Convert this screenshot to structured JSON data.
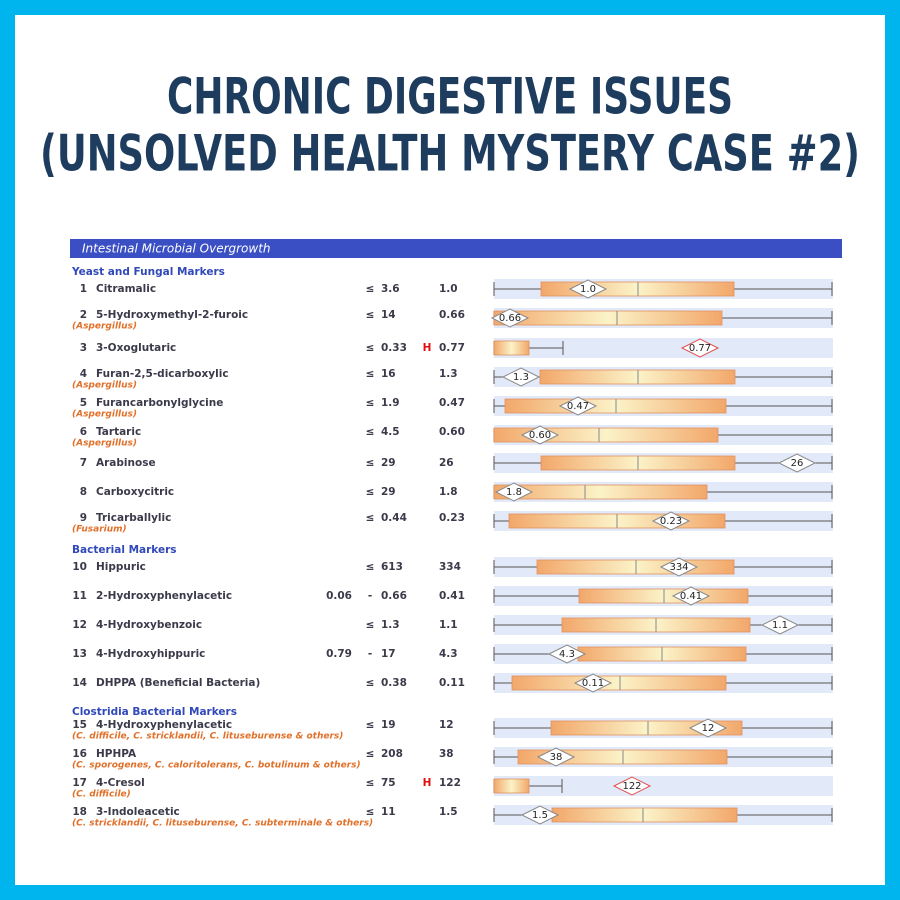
{
  "title": {
    "line1": "CHRONIC DIGESTIVE ISSUES",
    "line2": "(UNSOLVED HEALTH MYSTERY CASE #2)"
  },
  "report": {
    "section": "Intestinal Microbial Overgrowth",
    "groups": [
      {
        "name": "Yeast and Fungal Markers",
        "rows": [
          {
            "number": "1",
            "name": "Citramalic",
            "symbol": "≤",
            "high": "3.6",
            "value": "1.0"
          },
          {
            "number": "2",
            "name": "5-Hydroxymethyl-2-furoic",
            "organism": "(Aspergillus)",
            "symbol": "≤",
            "high": "14",
            "value": "0.66"
          },
          {
            "number": "3",
            "name": "3-Oxoglutaric",
            "symbol": "≤",
            "high": "0.33",
            "flag": "H",
            "value": "0.77"
          },
          {
            "number": "4",
            "name": "Furan-2,5-dicarboxylic",
            "organism": "(Aspergillus)",
            "symbol": "≤",
            "high": "16",
            "value": "1.3"
          },
          {
            "number": "5",
            "name": "Furancarbonylglycine",
            "organism": "(Aspergillus)",
            "symbol": "≤",
            "high": "1.9",
            "value": "0.47"
          },
          {
            "number": "6",
            "name": "Tartaric",
            "organism": "(Aspergillus)",
            "symbol": "≤",
            "high": "4.5",
            "value": "0.60"
          },
          {
            "number": "7",
            "name": "Arabinose",
            "symbol": "≤",
            "high": "29",
            "value": "26"
          },
          {
            "number": "8",
            "name": "Carboxycitric",
            "symbol": "≤",
            "high": "29",
            "value": "1.8"
          },
          {
            "number": "9",
            "name": "Tricarballylic",
            "organism": "(Fusarium)",
            "symbol": "≤",
            "high": "0.44",
            "value": "0.23"
          }
        ]
      },
      {
        "name": "Bacterial Markers",
        "rows": [
          {
            "number": "10",
            "name": "Hippuric",
            "symbol": "≤",
            "high": "613",
            "value": "334"
          },
          {
            "number": "11",
            "name": "2-Hydroxyphenylacetic",
            "low": "0.06",
            "symbol": "-",
            "high": "0.66",
            "value": "0.41"
          },
          {
            "number": "12",
            "name": "4-Hydroxybenzoic",
            "symbol": "≤",
            "high": "1.3",
            "value": "1.1"
          },
          {
            "number": "13",
            "name": "4-Hydroxyhippuric",
            "low": "0.79",
            "symbol": "-",
            "high": "17",
            "value": "4.3"
          },
          {
            "number": "14",
            "name": "DHPPA (Beneficial Bacteria)",
            "symbol": "≤",
            "high": "0.38",
            "value": "0.11"
          }
        ]
      },
      {
        "name": "Clostridia Bacterial Markers",
        "rows": [
          {
            "number": "15",
            "name": "4-Hydroxyphenylacetic",
            "organism": "(C. difficile, C. stricklandii, C. lituseburense & others)",
            "symbol": "≤",
            "high": "19",
            "value": "12"
          },
          {
            "number": "16",
            "name": "HPHPA",
            "organism": "(C. sporogenes, C. caloritolerans, C. botulinum & others)",
            "symbol": "≤",
            "high": "208",
            "value": "38"
          },
          {
            "number": "17",
            "name": "4-Cresol",
            "organism": "(C. difficile)",
            "symbol": "≤",
            "high": "75",
            "flag": "H",
            "value": "122"
          },
          {
            "number": "18",
            "name": "3-Indoleacetic",
            "organism": "(C. stricklandii, C. lituseburense, C. subterminale & others)",
            "symbol": "≤",
            "high": "11",
            "value": "1.5"
          }
        ]
      }
    ]
  }
}
